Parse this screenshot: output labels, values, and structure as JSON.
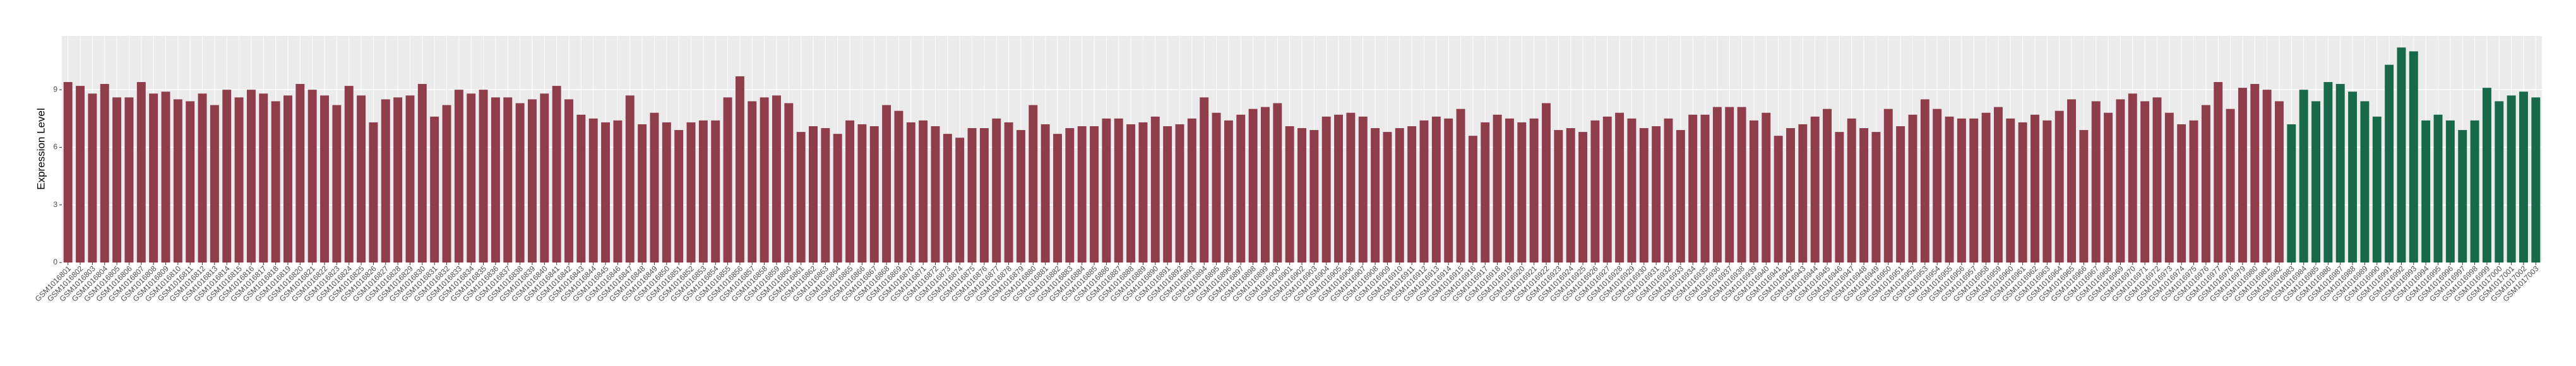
{
  "chart_data": {
    "type": "bar",
    "y_label": "Expression Level",
    "categories": [
      "GSM1016801",
      "GSM1016802",
      "GSM1016803",
      "GSM1016804",
      "GSM1016805",
      "GSM1016806",
      "GSM1016807",
      "GSM1016808",
      "GSM1016809",
      "GSM1016810",
      "GSM1016811",
      "GSM1016812",
      "GSM1016813",
      "GSM1016814",
      "GSM1016815",
      "GSM1016816",
      "GSM1016817",
      "GSM1016818",
      "GSM1016819",
      "GSM1016820",
      "GSM1016821",
      "GSM1016822",
      "GSM1016823",
      "GSM1016824",
      "GSM1016825",
      "GSM1016826",
      "GSM1016827",
      "GSM1016828",
      "GSM1016829",
      "GSM1016830",
      "GSM1016831",
      "GSM1016832",
      "GSM1016833",
      "GSM1016834",
      "GSM1016835",
      "GSM1016836",
      "GSM1016837",
      "GSM1016838",
      "GSM1016839",
      "GSM1016840",
      "GSM1016841",
      "GSM1016842",
      "GSM1016843",
      "GSM1016844",
      "GSM1016845",
      "GSM1016846",
      "GSM1016847",
      "GSM1016848",
      "GSM1016849",
      "GSM1016850",
      "GSM1016851",
      "GSM1016852",
      "GSM1016853",
      "GSM1016854",
      "GSM1016855",
      "GSM1016856",
      "GSM1016857",
      "GSM1016858",
      "GSM1016859",
      "GSM1016860",
      "GSM1016861",
      "GSM1016862",
      "GSM1016863",
      "GSM1016864",
      "GSM1016865",
      "GSM1016866",
      "GSM1016867",
      "GSM1016868",
      "GSM1016869",
      "GSM1016870",
      "GSM1016871",
      "GSM1016872",
      "GSM1016873",
      "GSM1016874",
      "GSM1016875",
      "GSM1016876",
      "GSM1016877",
      "GSM1016878",
      "GSM1016879",
      "GSM1016880",
      "GSM1016881",
      "GSM1016882",
      "GSM1016883",
      "GSM1016884",
      "GSM1016885",
      "GSM1016886",
      "GSM1016887",
      "GSM1016888",
      "GSM1016889",
      "GSM1016890",
      "GSM1016891",
      "GSM1016892",
      "GSM1016893",
      "GSM1016894",
      "GSM1016895",
      "GSM1016896",
      "GSM1016897",
      "GSM1016898",
      "GSM1016899",
      "GSM1016900",
      "GSM1016901",
      "GSM1016902",
      "GSM1016903",
      "GSM1016904",
      "GSM1016905",
      "GSM1016906",
      "GSM1016907",
      "GSM1016908",
      "GSM1016909",
      "GSM1016910",
      "GSM1016911",
      "GSM1016912",
      "GSM1016913",
      "GSM1016914",
      "GSM1016915",
      "GSM1016916",
      "GSM1016917",
      "GSM1016918",
      "GSM1016919",
      "GSM1016920",
      "GSM1016921",
      "GSM1016922",
      "GSM1016923",
      "GSM1016924",
      "GSM1016925",
      "GSM1016926",
      "GSM1016927",
      "GSM1016928",
      "GSM1016929",
      "GSM1016930",
      "GSM1016931",
      "GSM1016932",
      "GSM1016933",
      "GSM1016934",
      "GSM1016935",
      "GSM1016936",
      "GSM1016937",
      "GSM1016938",
      "GSM1016939",
      "GSM1016940",
      "GSM1016941",
      "GSM1016942",
      "GSM1016943",
      "GSM1016944",
      "GSM1016945",
      "GSM1016946",
      "GSM1016947",
      "GSM1016948",
      "GSM1016949",
      "GSM1016950",
      "GSM1016951",
      "GSM1016952",
      "GSM1016953",
      "GSM1016954",
      "GSM1016955",
      "GSM1016956",
      "GSM1016957",
      "GSM1016958",
      "GSM1016959",
      "GSM1016960",
      "GSM1016961",
      "GSM1016962",
      "GSM1016963",
      "GSM1016964",
      "GSM1016965",
      "GSM1016966",
      "GSM1016967",
      "GSM1016968",
      "GSM1016969",
      "GSM1016970",
      "GSM1016971",
      "GSM1016972",
      "GSM1016973",
      "GSM1016974",
      "GSM1016975",
      "GSM1016976",
      "GSM1016977",
      "GSM1016978",
      "GSM1016979",
      "GSM1016980",
      "GSM1016981",
      "GSM1016982",
      "GSM1016983",
      "GSM1016984",
      "GSM1016985",
      "GSM1016986",
      "GSM1016987",
      "GSM1016988",
      "GSM1016989",
      "GSM1016990",
      "GSM1016991",
      "GSM1016992",
      "GSM1016993",
      "GSM1016994",
      "GSM1016995",
      "GSM1016996",
      "GSM1016997",
      "GSM1016998",
      "GSM1016999",
      "GSM1017000",
      "GSM1017001",
      "GSM1017002",
      "GSM1017003"
    ],
    "series": [
      {
        "color": "#8f3d4b",
        "values": [
          9.4,
          9.2,
          8.8,
          9.3,
          8.6,
          8.6,
          9.4,
          8.8,
          8.9,
          8.5,
          8.4,
          8.8,
          8.2,
          9.0,
          8.6,
          9.0,
          8.8,
          8.4,
          8.7,
          9.3,
          9.0,
          8.7,
          8.2,
          9.2,
          8.7,
          7.3,
          8.5,
          8.6,
          8.7,
          9.3,
          7.6,
          8.2,
          9.0,
          8.8,
          9.0,
          8.6,
          8.6,
          8.3,
          8.5,
          8.8,
          9.2,
          8.5,
          7.7,
          7.5,
          7.3,
          7.4,
          8.7,
          7.2,
          7.8,
          7.3,
          6.9,
          7.3,
          7.4,
          7.4,
          8.6,
          9.7,
          8.4,
          8.6,
          8.7,
          8.3,
          6.8,
          7.1,
          7.0,
          6.7,
          7.4,
          7.2,
          7.1,
          8.2,
          7.9,
          7.3,
          7.4,
          7.1,
          6.7,
          6.5,
          7.0,
          7.0,
          7.5,
          7.3,
          6.9,
          8.2,
          7.2,
          6.7,
          7.0,
          7.1,
          7.1,
          7.5,
          7.5,
          7.2,
          7.3,
          7.6,
          7.1,
          7.2,
          7.5,
          8.6,
          7.8,
          7.4,
          7.7,
          8.0,
          8.1,
          8.3,
          7.1,
          7.0,
          6.9,
          7.6,
          7.7,
          7.8,
          7.6,
          7.0,
          6.8,
          7.0,
          7.1,
          7.4,
          7.6,
          7.5,
          8.0,
          6.6,
          7.3,
          7.7,
          7.5,
          7.3,
          7.5,
          8.3,
          6.9,
          7.0,
          6.8,
          7.4,
          7.6,
          7.8,
          7.5,
          7.0,
          7.1,
          7.5,
          6.9,
          7.7,
          7.7,
          8.1,
          8.1,
          8.1,
          7.4,
          7.8,
          6.6,
          7.0,
          7.2,
          7.6,
          8.0,
          6.8,
          7.5,
          7.0,
          6.8,
          8.0,
          7.1,
          7.7,
          8.5,
          8.0,
          7.6,
          7.5,
          7.5,
          7.8,
          8.1,
          7.5,
          7.3,
          7.7,
          7.4,
          7.9,
          8.5,
          6.9,
          8.4,
          7.8,
          8.5,
          8.8,
          8.4,
          8.6,
          7.8,
          7.2,
          7.4,
          8.2,
          9.4,
          8.0,
          9.1,
          9.3,
          9.0,
          8.4,
          null,
          null,
          null,
          null,
          null,
          null,
          null,
          null,
          null,
          null,
          null,
          null,
          null,
          null,
          null,
          null,
          null,
          null,
          null,
          null,
          null
        ]
      },
      {
        "color": "#17694a",
        "values": [
          null,
          null,
          null,
          null,
          null,
          null,
          null,
          null,
          null,
          null,
          null,
          null,
          null,
          null,
          null,
          null,
          null,
          null,
          null,
          null,
          null,
          null,
          null,
          null,
          null,
          null,
          null,
          null,
          null,
          null,
          null,
          null,
          null,
          null,
          null,
          null,
          null,
          null,
          null,
          null,
          null,
          null,
          null,
          null,
          null,
          null,
          null,
          null,
          null,
          null,
          null,
          null,
          null,
          null,
          null,
          null,
          null,
          null,
          null,
          null,
          null,
          null,
          null,
          null,
          null,
          null,
          null,
          null,
          null,
          null,
          null,
          null,
          null,
          null,
          null,
          null,
          null,
          null,
          null,
          null,
          null,
          null,
          null,
          null,
          null,
          null,
          null,
          null,
          null,
          null,
          null,
          null,
          null,
          null,
          null,
          null,
          null,
          null,
          null,
          null,
          null,
          null,
          null,
          null,
          null,
          null,
          null,
          null,
          null,
          null,
          null,
          null,
          null,
          null,
          null,
          null,
          null,
          null,
          null,
          null,
          null,
          null,
          null,
          null,
          null,
          null,
          null,
          null,
          null,
          null,
          null,
          null,
          null,
          null,
          null,
          null,
          null,
          null,
          null,
          null,
          null,
          null,
          null,
          null,
          null,
          null,
          null,
          null,
          null,
          null,
          null,
          null,
          null,
          null,
          null,
          null,
          null,
          null,
          null,
          null,
          null,
          null,
          null,
          null,
          null,
          null,
          null,
          null,
          null,
          null,
          null,
          null,
          null,
          null,
          null,
          null,
          null,
          null,
          null,
          null,
          null,
          null,
          7.2,
          9.0,
          8.4,
          9.4,
          9.3,
          8.9,
          8.4,
          7.6,
          10.3,
          11.2,
          11.0,
          7.4,
          7.7,
          7.4,
          6.9,
          7.4,
          9.1,
          8.4,
          8.7,
          8.9,
          8.6
        ]
      }
    ],
    "ylim": [
      0,
      11.8
    ],
    "yticks": [
      0,
      3,
      6,
      9
    ],
    "grid": true
  }
}
